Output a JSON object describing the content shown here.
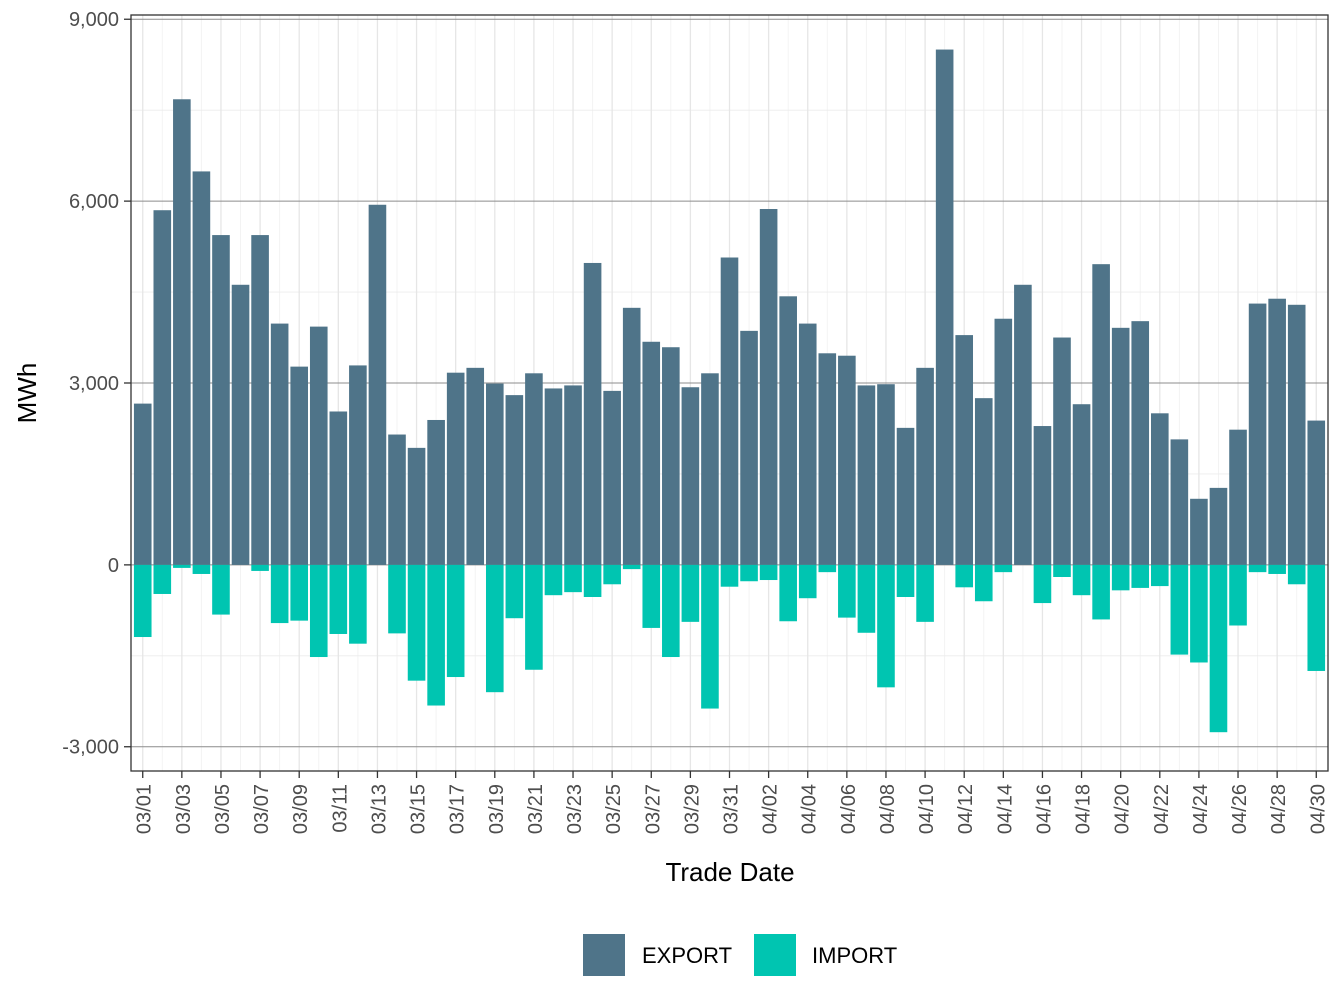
{
  "chart_data": {
    "type": "bar",
    "stacked": "diverging",
    "xlabel": "Trade Date",
    "ylabel": "MWh",
    "ylim": [
      -3000,
      9000
    ],
    "yticks": [
      -3000,
      0,
      3000,
      6000,
      9000
    ],
    "ytick_labels": [
      "-3,000",
      "0",
      "3,000",
      "6,000",
      "9,000"
    ],
    "grid": true,
    "legend_position": "bottom",
    "categories": [
      "03/01",
      "03/02",
      "03/03",
      "03/04",
      "03/05",
      "03/06",
      "03/07",
      "03/08",
      "03/09",
      "03/10",
      "03/11",
      "03/12",
      "03/13",
      "03/14",
      "03/15",
      "03/16",
      "03/17",
      "03/18",
      "03/19",
      "03/20",
      "03/21",
      "03/22",
      "03/23",
      "03/24",
      "03/25",
      "03/26",
      "03/27",
      "03/28",
      "03/29",
      "03/30",
      "03/31",
      "04/01",
      "04/02",
      "04/03",
      "04/04",
      "04/05",
      "04/06",
      "04/07",
      "04/08",
      "04/09",
      "04/10",
      "04/11",
      "04/12",
      "04/13",
      "04/14",
      "04/15",
      "04/16",
      "04/17",
      "04/18",
      "04/19",
      "04/20",
      "04/21",
      "04/22",
      "04/23",
      "04/24",
      "04/25",
      "04/26",
      "04/27",
      "04/28",
      "04/29",
      "04/30"
    ],
    "tick_labels": [
      "03/01",
      "03/03",
      "03/05",
      "03/07",
      "03/09",
      "03/11",
      "03/13",
      "03/15",
      "03/17",
      "03/19",
      "03/21",
      "03/23",
      "03/25",
      "03/27",
      "03/29",
      "03/31",
      "04/02",
      "04/04",
      "04/06",
      "04/08",
      "04/10",
      "04/12",
      "04/14",
      "04/16",
      "04/18",
      "04/20",
      "04/22",
      "04/24",
      "04/26",
      "04/28",
      "04/30"
    ],
    "series": [
      {
        "name": "EXPORT",
        "color": "#4f7489",
        "values": [
          2660,
          5850,
          7680,
          6490,
          5440,
          4620,
          5440,
          3980,
          3270,
          3930,
          2530,
          3290,
          5940,
          2150,
          1930,
          2390,
          3170,
          3250,
          2990,
          2800,
          3160,
          2910,
          2960,
          4980,
          2870,
          4240,
          3680,
          3590,
          2930,
          3160,
          5070,
          3860,
          5870,
          4430,
          3980,
          3490,
          3450,
          2960,
          2980,
          2260,
          3250,
          8500,
          3790,
          2750,
          4060,
          4620,
          2290,
          3750,
          2650,
          4960,
          3910,
          4020,
          2500,
          2070,
          1090,
          1270,
          2230,
          4310,
          4390,
          4290,
          2380
        ]
      },
      {
        "name": "IMPORT",
        "color": "#00c5b1",
        "values": [
          -1190,
          -480,
          -50,
          -150,
          -820,
          0,
          -100,
          -960,
          -920,
          -1520,
          -1140,
          -1300,
          0,
          -1130,
          -1910,
          -2320,
          -1850,
          0,
          -2100,
          -880,
          -1730,
          -500,
          -450,
          -530,
          -320,
          -70,
          -1040,
          -1520,
          -940,
          -2370,
          -360,
          -270,
          -250,
          -930,
          -550,
          -120,
          -870,
          -1120,
          -2020,
          -530,
          -940,
          0,
          -370,
          -600,
          -120,
          0,
          -630,
          -200,
          -500,
          -900,
          -420,
          -380,
          -350,
          -1480,
          -1610,
          -2760,
          -1000,
          -120,
          -150,
          -320,
          -1750
        ]
      }
    ]
  }
}
